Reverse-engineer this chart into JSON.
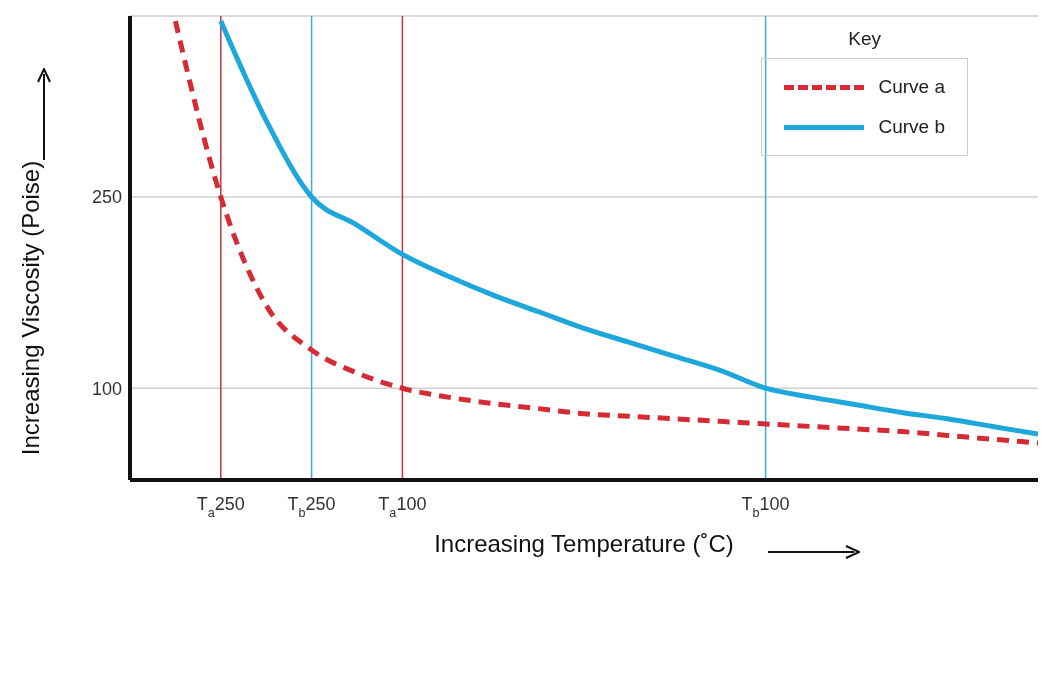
{
  "chart_data": {
    "type": "line",
    "xlabel": "Increasing Temperature (˚C)",
    "ylabel": "Increasing Viscosity (Poise)",
    "legend_title": "Key",
    "legend": "top right",
    "grid": "y",
    "marker": "none",
    "ylim": [
      28,
      392
    ],
    "yticks": [
      100,
      250
    ],
    "categories": [
      null,
      null,
      "T$_{a}$250",
      null,
      "T$_{b}$250",
      null,
      "T$_{a}$100",
      null,
      null,
      null,
      null,
      null,
      null,
      null,
      "T$_{b}$100",
      null,
      null,
      null,
      null,
      null,
      null
    ],
    "ref_lines": [
      {
        "axis": "x",
        "value": "T$_{a}$250",
        "color": "#c8323c"
      },
      {
        "axis": "x",
        "value": "T$_{b}$250",
        "color": "#3aaed8"
      },
      {
        "axis": "x",
        "value": "T$_{a}$100",
        "color": "#c8323c"
      },
      {
        "axis": "x",
        "value": "T$_{b}$100",
        "color": "#3aaed8"
      }
    ],
    "series": [
      {
        "name": "Curve a",
        "color": "#d42b34",
        "line_style": "dashed",
        "values": [
          null,
          388,
          250,
          165,
          130,
          112,
          100,
          93,
          88,
          84,
          80,
          78,
          76,
          74,
          72,
          70,
          68,
          66,
          63,
          60,
          57
        ]
      },
      {
        "name": "Curve b",
        "color": "#1ea7db",
        "line_style": "solid",
        "values": [
          null,
          null,
          388,
          310,
          250,
          228,
          205,
          188,
          173,
          160,
          147,
          136,
          125,
          114,
          100,
          93,
          87,
          81,
          76,
          70,
          64
        ]
      }
    ]
  }
}
